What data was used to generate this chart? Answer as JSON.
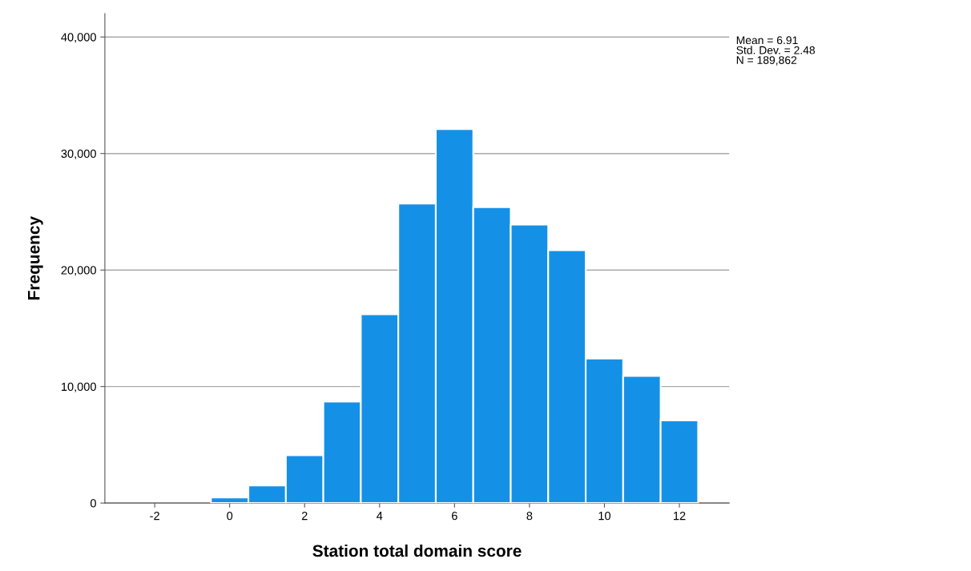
{
  "chart_data": {
    "type": "histogram",
    "xlabel": "Station total domain score",
    "ylabel": "Frequency",
    "bins": [
      -0.5,
      0.5,
      1.5,
      2.5,
      3.5,
      4.5,
      5.5,
      6.5,
      7.5,
      8.5,
      9.5,
      10.5,
      11.5,
      12.5
    ],
    "values": [
      480,
      1500,
      4100,
      8700,
      16200,
      25700,
      32100,
      25400,
      23900,
      21700,
      12400,
      10900,
      7100
    ],
    "color": "#1491e6",
    "xlim": [
      -3.33,
      13.33
    ],
    "xticks": [
      -2,
      0,
      2,
      4,
      6,
      8,
      10,
      12
    ],
    "ylim": [
      0,
      42000
    ],
    "yticks": [
      {
        "value": 0,
        "label": "0"
      },
      {
        "value": 10000,
        "label": "10,000"
      },
      {
        "value": 20000,
        "label": "20,000"
      },
      {
        "value": 30000,
        "label": "30,000"
      },
      {
        "value": 40000,
        "label": "40,000"
      }
    ],
    "grid": "y",
    "annotations": [
      "Mean = 6.91\nStd. Dev. = 2.48\nN = 189,862"
    ]
  }
}
